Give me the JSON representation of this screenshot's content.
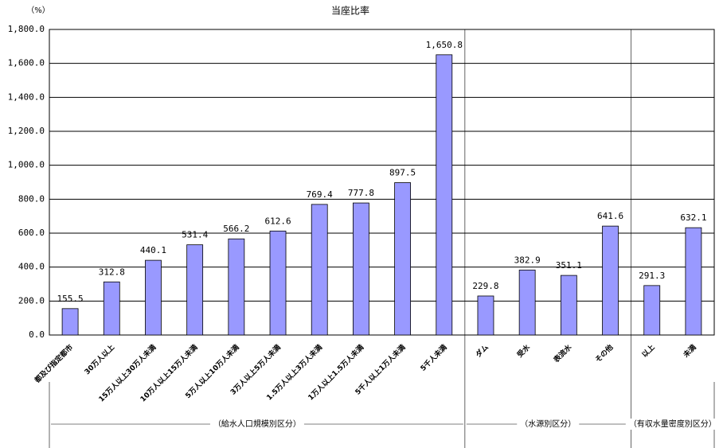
{
  "chart_data": {
    "type": "bar",
    "title": "当座比率",
    "y_label": "（%）",
    "categories": [
      "都及び指定都市",
      "30万人以上",
      "15万人以上30万人未満",
      "10万人以上15万人未満",
      "5万人以上10万人未満",
      "3万人以上5万人未満",
      "1.5万人以上3万人未満",
      "1万人以上1.5万人未満",
      "5千人以上1万人未満",
      "5千人未満",
      "ダム",
      "受水",
      "表流水",
      "その他",
      "以上",
      "未満"
    ],
    "values": [
      155.5,
      312.8,
      440.1,
      531.4,
      566.2,
      612.6,
      769.4,
      777.8,
      897.5,
      1650.8,
      229.8,
      382.9,
      351.1,
      641.6,
      291.3,
      632.1
    ],
    "value_labels": [
      "155.5",
      "312.8",
      "440.1",
      "531.4",
      "566.2",
      "612.6",
      "769.4",
      "777.8",
      "897.5",
      "1,650.8",
      "229.8",
      "382.9",
      "351.1",
      "641.6",
      "291.3",
      "632.1"
    ],
    "groups": [
      "（給水人口規模別区分）",
      "（水源別区分）",
      "（有収水量密度別区分）"
    ],
    "color": "#9999ff",
    "ylim": [
      0,
      1800
    ],
    "yticks": [
      {
        "value": 0,
        "label": "0.0"
      },
      {
        "value": 200,
        "label": "200.0"
      },
      {
        "value": 400,
        "label": "400.0"
      },
      {
        "value": 600,
        "label": "600.0"
      },
      {
        "value": 800,
        "label": "800.0"
      },
      {
        "value": 1000,
        "label": "1,000.0"
      },
      {
        "value": 1200,
        "label": "1,200.0"
      },
      {
        "value": 1400,
        "label": "1,400.0"
      },
      {
        "value": 1600,
        "label": "1,600.0"
      },
      {
        "value": 1800,
        "label": "1,800.0"
      }
    ],
    "grid": true
  }
}
